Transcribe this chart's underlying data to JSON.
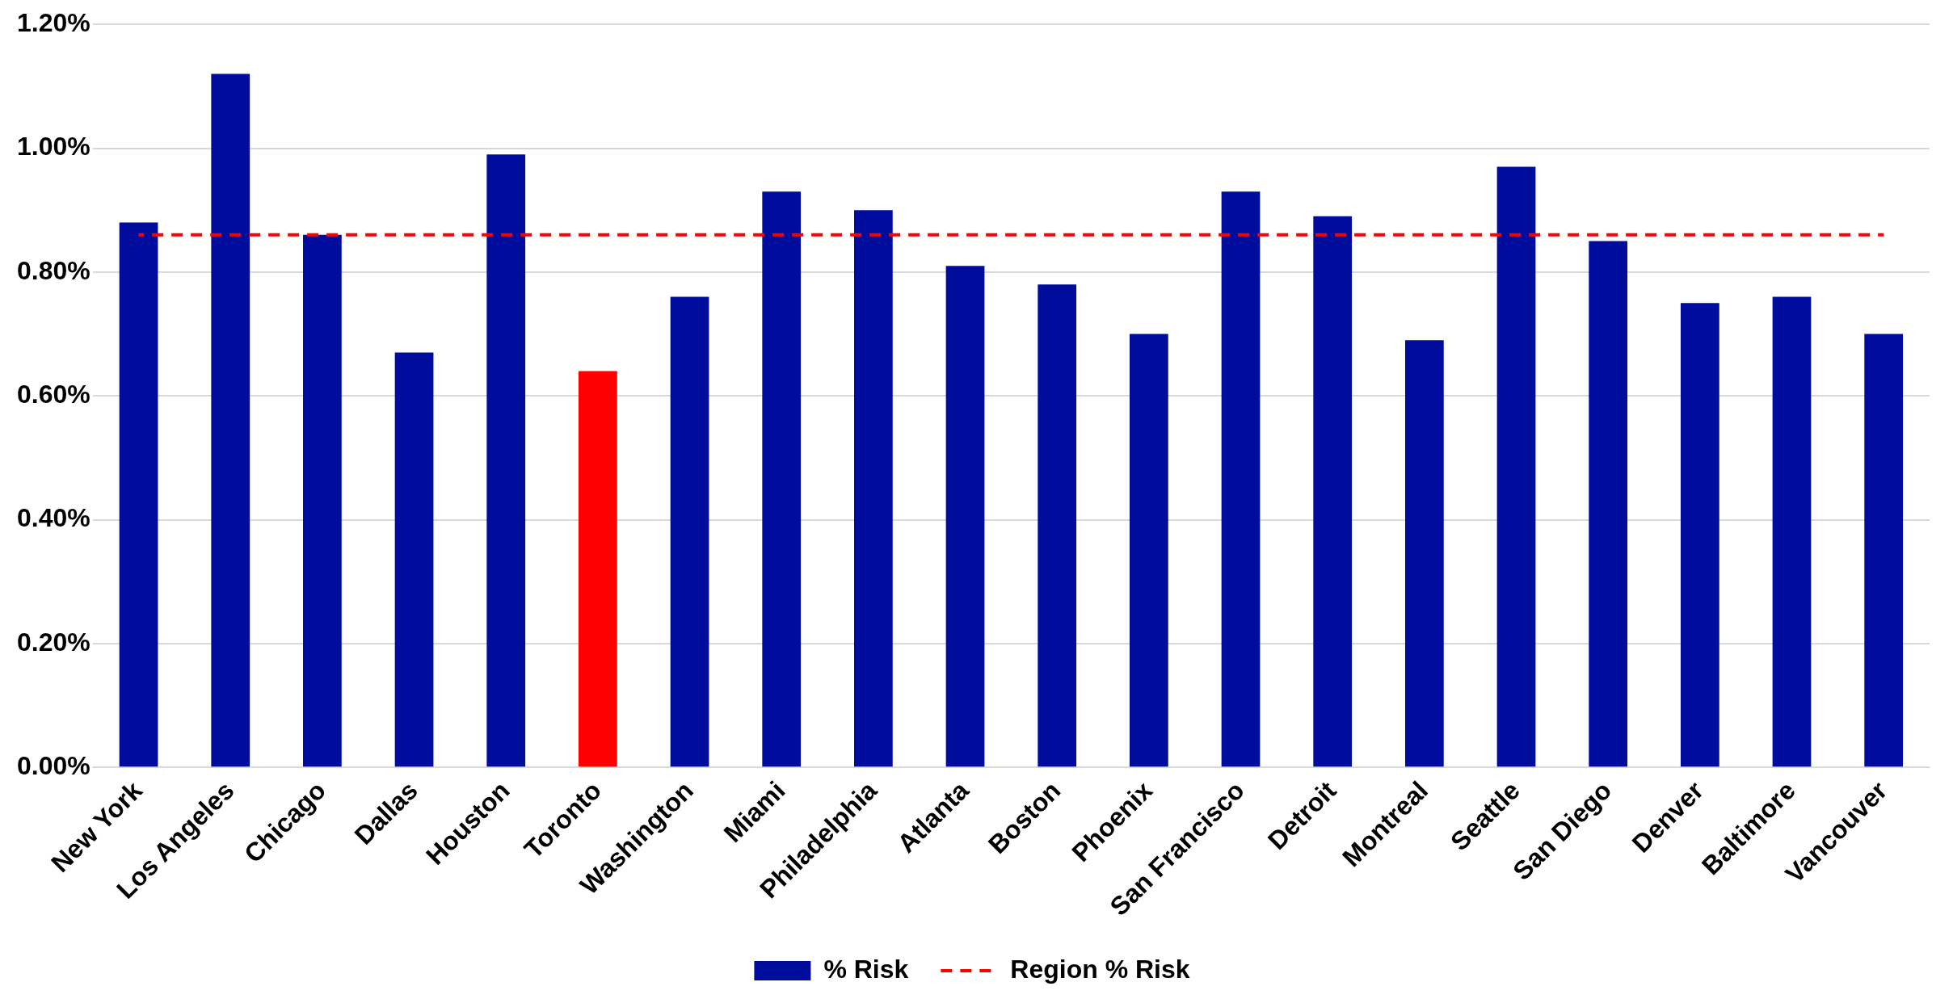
{
  "chart_data": {
    "type": "bar",
    "categories": [
      "New York",
      "Los Angeles",
      "Chicago",
      "Dallas",
      "Houston",
      "Toronto",
      "Washington",
      "Miami",
      "Philadelphia",
      "Atlanta",
      "Boston",
      "Phoenix",
      "San Francisco",
      "Detroit",
      "Montreal",
      "Seattle",
      "San Diego",
      "Denver",
      "Baltimore",
      "Vancouver"
    ],
    "series": [
      {
        "name": "% Risk",
        "color": "#000c9c",
        "colors": [
          "#000c9c",
          "#000c9c",
          "#000c9c",
          "#000c9c",
          "#000c9c",
          "#ff0000",
          "#000c9c",
          "#000c9c",
          "#000c9c",
          "#000c9c",
          "#000c9c",
          "#000c9c",
          "#000c9c",
          "#000c9c",
          "#000c9c",
          "#000c9c",
          "#000c9c",
          "#000c9c",
          "#000c9c",
          "#000c9c"
        ],
        "values": [
          0.88,
          1.12,
          0.86,
          0.67,
          0.99,
          0.64,
          0.76,
          0.93,
          0.9,
          0.81,
          0.78,
          0.7,
          0.93,
          0.89,
          0.69,
          0.97,
          0.85,
          0.75,
          0.76,
          0.7
        ]
      },
      {
        "name": "Region % Risk",
        "type": "line",
        "color": "#ff0000",
        "line_style": "dashed",
        "marker": "none",
        "values": [
          0.86,
          0.86,
          0.86,
          0.86,
          0.86,
          0.86,
          0.86,
          0.86,
          0.86,
          0.86,
          0.86,
          0.86,
          0.86,
          0.86,
          0.86,
          0.86,
          0.86,
          0.86,
          0.86,
          0.86
        ]
      }
    ],
    "ylim": [
      0,
      1.2
    ],
    "yticks": [
      {
        "value": 0,
        "label": "0.00%"
      },
      {
        "value": 0.2,
        "label": "0.20%"
      },
      {
        "value": 0.4,
        "label": "0.40%"
      },
      {
        "value": 0.6,
        "label": "0.60%"
      },
      {
        "value": 0.8,
        "label": "0.80%"
      },
      {
        "value": 1,
        "label": "1.00%"
      },
      {
        "value": 1.2,
        "label": "1.20%"
      }
    ],
    "grid": "y",
    "legend": "bottom"
  }
}
